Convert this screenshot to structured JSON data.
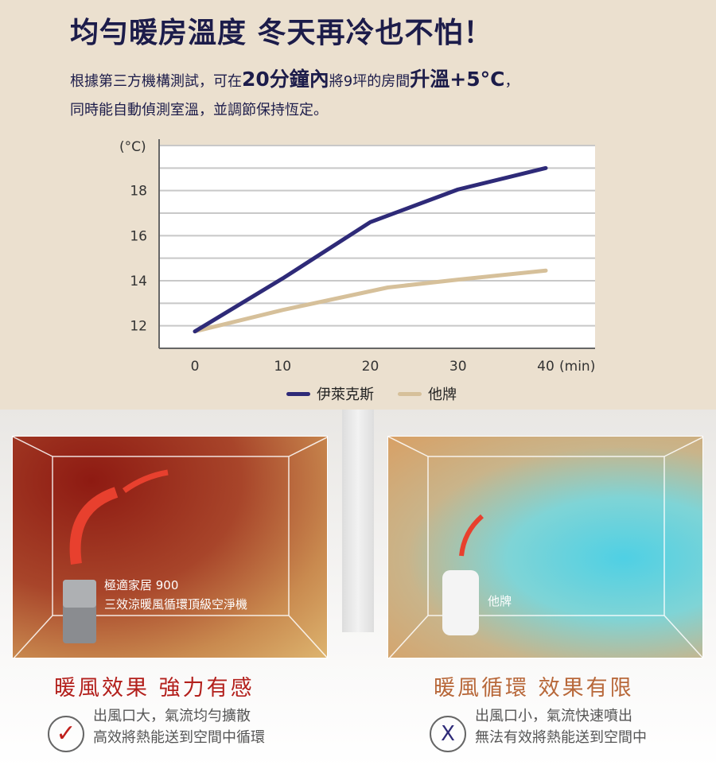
{
  "header": {
    "title": "均勻暖房溫度 冬天再冷也不怕！",
    "line1": {
      "a": "根據第三方機構測試，可在",
      "b": "20分鐘內",
      "c": "將9坪的房間",
      "d": "升溫+5°C",
      "e": "，"
    },
    "line2": "同時能自動偵測室溫，並調節保持恆定。"
  },
  "chart_data": {
    "type": "line",
    "ylabel": "(°C)",
    "xlabel": "(min)",
    "x": [
      0,
      10,
      20,
      30,
      40
    ],
    "xticks": [
      "0",
      "10",
      "20",
      "30",
      "40"
    ],
    "yticks": [
      "12",
      "14",
      "16",
      "18"
    ],
    "ylim": [
      11,
      20
    ],
    "xlim": [
      -4,
      46
    ],
    "grid": true,
    "legend_position": "bottom",
    "series": [
      {
        "name": "伊萊克斯",
        "color": "#2e2a78",
        "points": [
          [
            0,
            11.75
          ],
          [
            10,
            14.1
          ],
          [
            20,
            16.6
          ],
          [
            30,
            18.05
          ],
          [
            40,
            19.0
          ]
        ]
      },
      {
        "name": "他牌",
        "color": "#d6c09a",
        "points": [
          [
            0,
            11.75
          ],
          [
            10,
            12.7
          ],
          [
            22,
            13.7
          ],
          [
            30,
            14.05
          ],
          [
            40,
            14.45
          ]
        ]
      }
    ]
  },
  "left": {
    "product_line1": "極適家居 900",
    "product_line2": "三效涼暖風循環頂級空淨機",
    "heading": "暖風效果 強力有感",
    "mark": "✓",
    "desc1": "出風口大，氣流均勻擴散",
    "desc2": "高效將熱能送到空間中循環",
    "heading_color": "#b3201c"
  },
  "right": {
    "product_label": "他牌",
    "heading": "暖風循環 效果有限",
    "mark": "X",
    "desc1": "出風口小，氣流快速噴出",
    "desc2": "無法有效將熱能送到空間中",
    "heading_color": "#b8683a"
  }
}
